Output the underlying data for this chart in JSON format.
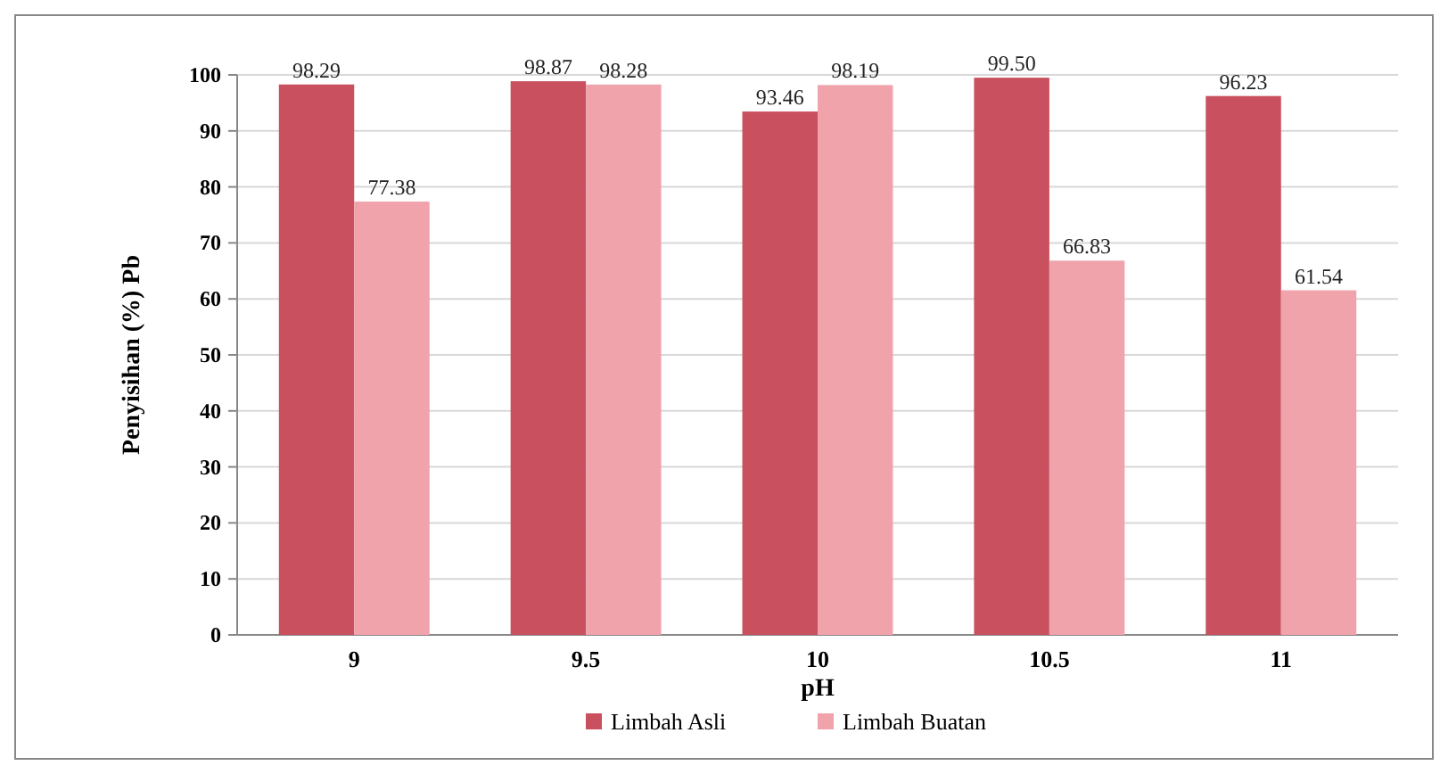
{
  "chart_data": {
    "type": "bar",
    "xlabel": "pH",
    "ylabel": "Penyisihan (%) Pb",
    "categories": [
      "9",
      "9.5",
      "10",
      "10.5",
      "11"
    ],
    "series": [
      {
        "name": "Limbah Asli",
        "color": "#c9505e",
        "values": [
          98.29,
          98.87,
          93.46,
          99.5,
          96.23
        ],
        "value_labels": [
          "98.29",
          "98.87",
          "93.46",
          "99.50",
          "96.23"
        ]
      },
      {
        "name": "Limbah Buatan",
        "color": "#f0a3ab",
        "values": [
          77.38,
          98.28,
          98.19,
          66.83,
          61.54
        ],
        "value_labels": [
          "77.38",
          "98.28",
          "98.19",
          "66.83",
          "61.54"
        ]
      }
    ],
    "ylim": [
      0,
      100
    ],
    "yticks": [
      0,
      10,
      20,
      30,
      40,
      50,
      60,
      70,
      80,
      90,
      100
    ],
    "grid": "y",
    "legend": "bottom"
  }
}
